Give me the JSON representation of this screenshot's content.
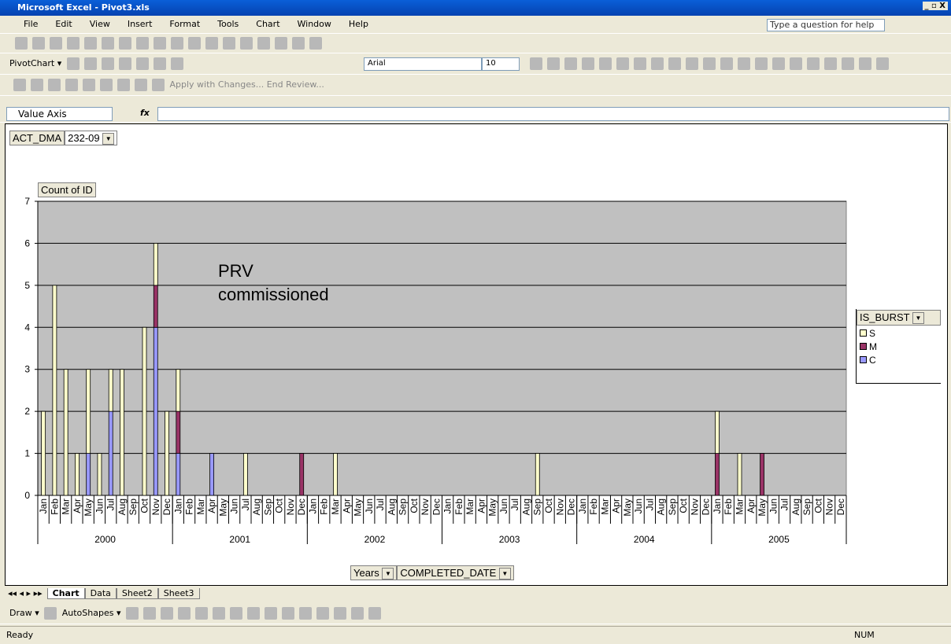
{
  "window": {
    "title": "Microsoft Excel - Pivot3.xls",
    "help_box": "Type a question for help"
  },
  "menu": [
    "File",
    "Edit",
    "View",
    "Insert",
    "Format",
    "Tools",
    "Chart",
    "Window",
    "Help"
  ],
  "toolbar": {
    "pivotchart": "PivotChart",
    "font": "Arial",
    "font_size": "10",
    "apply": "Apply with Changes...",
    "end_review": "End Review..."
  },
  "formula_bar": {
    "name_box": "Value Axis",
    "fx": "fx"
  },
  "pivot_fields": {
    "page_field": "ACT_DMA",
    "page_value": "232-09",
    "data_field": "Count of ID",
    "legend_field": "IS_BURST",
    "row_field_1": "Years",
    "row_field_2": "COMPLETED_DATE"
  },
  "chart_data": {
    "type": "stacked_bar",
    "annotation": "PRV commissioned",
    "categories": [
      "Jan",
      "Feb",
      "Mar",
      "Apr",
      "May",
      "Jun",
      "Jul",
      "Aug",
      "Sep",
      "Oct",
      "Nov",
      "Dec",
      "Jan",
      "Feb",
      "Mar",
      "Apr",
      "May",
      "Jun",
      "Jul",
      "Aug",
      "Sep",
      "Oct",
      "Nov",
      "Dec",
      "Jan",
      "Feb",
      "Mar",
      "Apr",
      "May",
      "Jun",
      "Jul",
      "Aug",
      "Sep",
      "Oct",
      "Nov",
      "Dec",
      "Jan",
      "Feb",
      "Mar",
      "Apr",
      "May",
      "Jun",
      "Jul",
      "Aug",
      "Sep",
      "Oct",
      "Nov",
      "Dec",
      "Jan",
      "Feb",
      "Mar",
      "Apr",
      "May",
      "Jun",
      "Jul",
      "Aug",
      "Sep",
      "Oct",
      "Nov",
      "Dec",
      "Jan",
      "Feb",
      "Mar",
      "Apr",
      "May",
      "Jun",
      "Jul",
      "Aug",
      "Sep",
      "Oct",
      "Nov",
      "Dec"
    ],
    "groups": [
      "2000",
      "2001",
      "2002",
      "2003",
      "2004",
      "2005"
    ],
    "series": [
      {
        "name": "S",
        "color": "#ffffcc",
        "values": [
          2,
          5,
          3,
          1,
          2,
          1,
          1,
          3,
          0,
          4,
          1,
          2,
          1,
          0,
          0,
          0,
          0,
          0,
          1,
          0,
          0,
          0,
          0,
          0,
          0,
          0,
          1,
          0,
          0,
          0,
          0,
          0,
          0,
          0,
          0,
          0,
          0,
          0,
          0,
          0,
          0,
          0,
          0,
          0,
          1,
          0,
          0,
          0,
          0,
          0,
          0,
          0,
          0,
          0,
          0,
          0,
          0,
          0,
          0,
          0,
          1,
          0,
          1,
          0,
          0,
          0,
          0,
          0,
          0,
          0,
          0,
          0
        ]
      },
      {
        "name": "M",
        "color": "#993366",
        "values": [
          0,
          0,
          0,
          0,
          0,
          0,
          0,
          0,
          0,
          0,
          1,
          0,
          1,
          0,
          0,
          0,
          0,
          0,
          0,
          0,
          0,
          0,
          0,
          1,
          0,
          0,
          0,
          0,
          0,
          0,
          0,
          0,
          0,
          0,
          0,
          0,
          0,
          0,
          0,
          0,
          0,
          0,
          0,
          0,
          0,
          0,
          0,
          0,
          0,
          0,
          0,
          0,
          0,
          0,
          0,
          0,
          0,
          0,
          0,
          0,
          1,
          0,
          0,
          0,
          1,
          0,
          0,
          0,
          0,
          0,
          0,
          0
        ]
      },
      {
        "name": "C",
        "color": "#9999ff",
        "values": [
          0,
          0,
          0,
          0,
          1,
          0,
          2,
          0,
          0,
          0,
          4,
          0,
          1,
          0,
          0,
          1,
          0,
          0,
          0,
          0,
          0,
          0,
          0,
          0,
          0,
          0,
          0,
          0,
          0,
          0,
          0,
          0,
          0,
          0,
          0,
          0,
          0,
          0,
          0,
          0,
          0,
          0,
          0,
          0,
          0,
          0,
          0,
          0,
          0,
          0,
          0,
          0,
          0,
          0,
          0,
          0,
          0,
          0,
          0,
          0,
          0,
          0,
          0,
          0,
          0,
          0,
          0,
          0,
          0,
          0,
          0,
          0
        ]
      }
    ],
    "ylim": [
      0,
      7
    ],
    "yticks": [
      0,
      1,
      2,
      3,
      4,
      5,
      6,
      7
    ],
    "grid": true,
    "plot_color": "#c0c0c0"
  },
  "sheets": [
    "Chart",
    "Data",
    "Sheet2",
    "Sheet3"
  ],
  "drawing": {
    "draw": "Draw",
    "autoshapes": "AutoShapes"
  },
  "status": {
    "ready": "Ready",
    "num": "NUM"
  }
}
